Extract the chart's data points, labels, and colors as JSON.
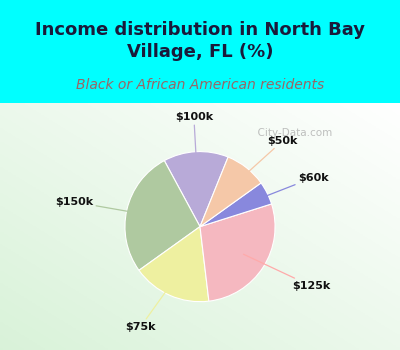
{
  "title": "Income distribution in North Bay\nVillage, FL (%)",
  "subtitle": "Black or African American residents",
  "labels": [
    "$100k",
    "$150k",
    "$75k",
    "$125k",
    "$60k",
    "$50k"
  ],
  "sizes": [
    14,
    27,
    17,
    28,
    5,
    9
  ],
  "colors": [
    "#b8aad8",
    "#afc9a0",
    "#eef0a0",
    "#f5b8c0",
    "#8888dd",
    "#f5c8a8"
  ],
  "line_colors": [
    "#b8aad8",
    "#afc9a0",
    "#eef0a0",
    "#ffaaaa",
    "#8888dd",
    "#f5c8a8"
  ],
  "title_color": "#1a1a3a",
  "subtitle_color": "#996666",
  "bg_top": "#00ffff",
  "watermark": "  City-Data.com",
  "watermark_color": "#aaaaaa",
  "title_fontsize": 13,
  "subtitle_fontsize": 10,
  "startangle": 68
}
